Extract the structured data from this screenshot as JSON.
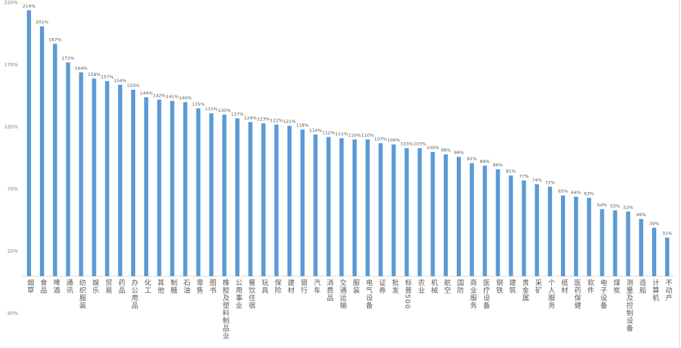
{
  "chart_data": {
    "type": "bar",
    "title": "",
    "xlabel": "",
    "ylabel": "",
    "ylim": [
      -30,
      220
    ],
    "yticks": [
      "220%",
      "170%",
      "120%",
      "70%",
      "20%",
      "-30%"
    ],
    "ytick_values": [
      220,
      170,
      120,
      70,
      20,
      -30
    ],
    "bar_color": "#5b9bd5",
    "grid": false,
    "categories": [
      "烟草",
      "食品",
      "啤酒",
      "通讯",
      "纺织服装",
      "娱乐",
      "贸易",
      "药品",
      "办公用品",
      "化工",
      "其他",
      "制糖",
      "石油",
      "零售",
      "图书",
      "橡胶及塑料制品业",
      "公用事业",
      "餐饮住宿",
      "玩具",
      "保险",
      "建材",
      "银行",
      "汽车",
      "消费品",
      "交通运输",
      "服装",
      "电气设备",
      "证券",
      "批发",
      "标普500",
      "农业",
      "机械",
      "航空",
      "国防",
      "商业服务",
      "医疗设备",
      "钢铁",
      "建筑",
      "贵金属",
      "采矿",
      "个人服务",
      "纸材",
      "医药保健",
      "软件",
      "电子设备",
      "煤炭",
      "测量及控制设备",
      "造船",
      "计算机",
      "不动产"
    ],
    "values": [
      214,
      201,
      187,
      172,
      164,
      159,
      157,
      154,
      150,
      144,
      142,
      141,
      140,
      135,
      131,
      130,
      127,
      124,
      123,
      122,
      121,
      118,
      114,
      112,
      111,
      110,
      110,
      107,
      106,
      103,
      103,
      100,
      98,
      96,
      91,
      89,
      86,
      81,
      77,
      74,
      72,
      65,
      64,
      63,
      54,
      53,
      52,
      46,
      39,
      31
    ],
    "data_labels": [
      "214%",
      "201%",
      "187%",
      "172%",
      "164%",
      "159%",
      "157%",
      "154%",
      "150%",
      "144%",
      "142%",
      "141%",
      "140%",
      "135%",
      "131%",
      "130%",
      "127%",
      "124%",
      "123%",
      "122%",
      "121%",
      "118%",
      "114%",
      "112%",
      "111%",
      "110%",
      "110%",
      "107%",
      "106%",
      "103%",
      "103%",
      "100%",
      "98%",
      "96%",
      "91%",
      "89%",
      "86%",
      "81%",
      "77%",
      "74%",
      "72%",
      "65%",
      "64%",
      "63%",
      "54%",
      "53%",
      "52%",
      "46%",
      "39%",
      "31%"
    ]
  }
}
